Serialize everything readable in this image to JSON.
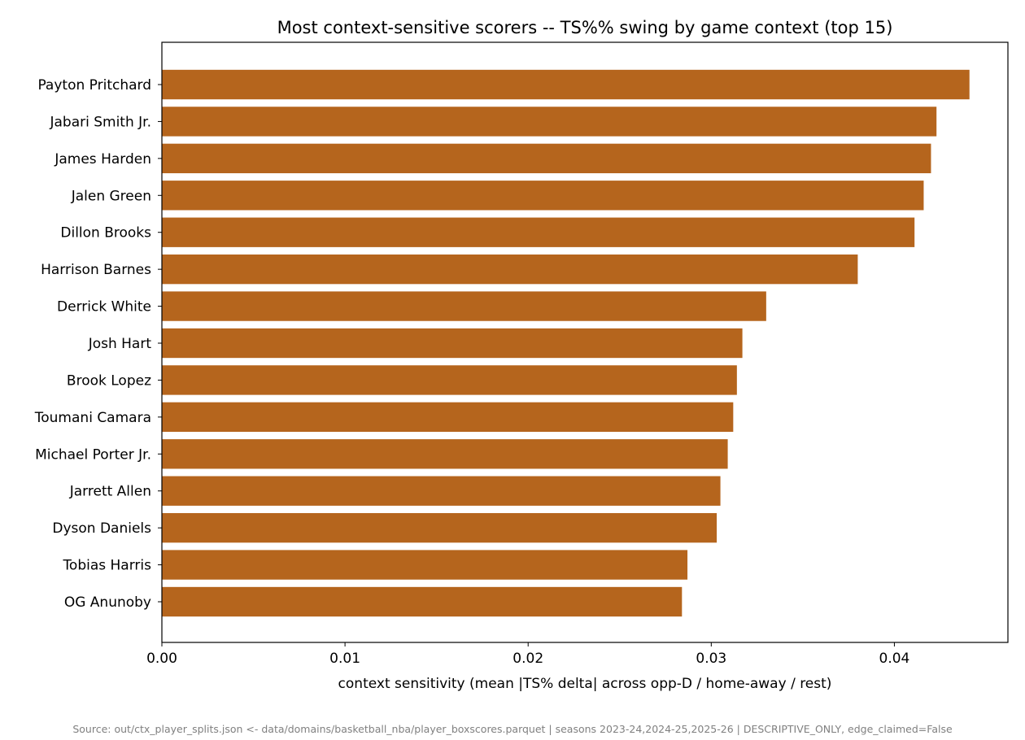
{
  "chart_data": {
    "type": "bar",
    "orientation": "horizontal",
    "title": "Most context-sensitive scorers -- TS%% swing by game context (top 15)",
    "xlabel": "context sensitivity (mean |TS% delta| across opp-D / home-away / rest)",
    "ylabel": "",
    "xlim": [
      0,
      0.0462
    ],
    "xticks": [
      "0.00",
      "0.01",
      "0.02",
      "0.03",
      "0.04"
    ],
    "bar_color": "#b5651d",
    "grid": false,
    "legend": "none",
    "categories": [
      "Payton Pritchard",
      "Jabari Smith Jr.",
      "James Harden",
      "Jalen Green",
      "Dillon Brooks",
      "Harrison Barnes",
      "Derrick White",
      "Josh Hart",
      "Brook Lopez",
      "Toumani Camara",
      "Michael Porter Jr.",
      "Jarrett Allen",
      "Dyson Daniels",
      "Tobias Harris",
      "OG Anunoby"
    ],
    "values": [
      0.0441,
      0.0423,
      0.042,
      0.0416,
      0.0411,
      0.038,
      0.033,
      0.0317,
      0.0314,
      0.0312,
      0.0309,
      0.0305,
      0.0303,
      0.0287,
      0.0284
    ]
  },
  "footer": "Source: out/ctx_player_splits.json <- data/domains/basketball_nba/player_boxscores.parquet | seasons 2023-24,2024-25,2025-26 | DESCRIPTIVE_ONLY, edge_claimed=False"
}
